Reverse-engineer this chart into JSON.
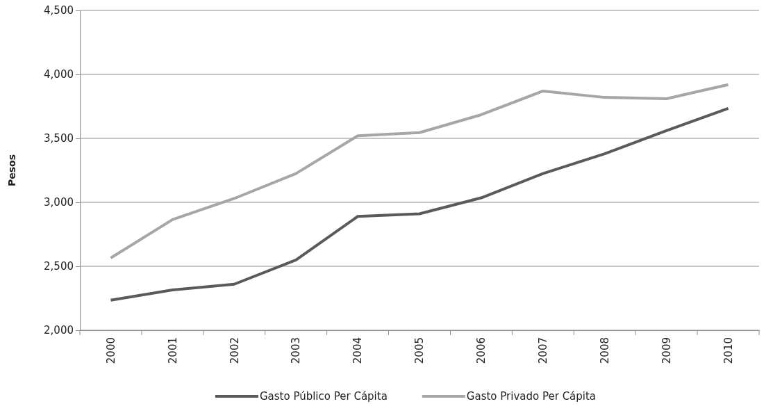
{
  "chart_data": {
    "type": "line",
    "ylabel": "Pesos",
    "categories": [
      "2000",
      "2001",
      "2002",
      "2003",
      "2004",
      "2005",
      "2006",
      "2007",
      "2008",
      "2009",
      "2010"
    ],
    "series": [
      {
        "name": "Gasto Público Per Cápita",
        "color": "#5a5a5c",
        "values": [
          2235,
          2315,
          2360,
          2550,
          2890,
          2910,
          3035,
          3225,
          3380,
          3560,
          3735
        ]
      },
      {
        "name": "Gasto Privado Per Cápita",
        "color": "#a6a6a8",
        "values": [
          2565,
          2865,
          3030,
          3225,
          3520,
          3545,
          3685,
          3870,
          3820,
          3810,
          3920
        ]
      }
    ],
    "ylim": [
      2000,
      4500
    ],
    "yticks": [
      {
        "value": 2000,
        "label": "2,000"
      },
      {
        "value": 2500,
        "label": "2,500"
      },
      {
        "value": 3000,
        "label": "3,000"
      },
      {
        "value": 3500,
        "label": "3,500"
      },
      {
        "value": 4000,
        "label": "4,000"
      },
      {
        "value": 4500,
        "label": "4,500"
      }
    ],
    "grid": "y",
    "legend": "bottom",
    "marker": "none",
    "line_style": "solid"
  }
}
